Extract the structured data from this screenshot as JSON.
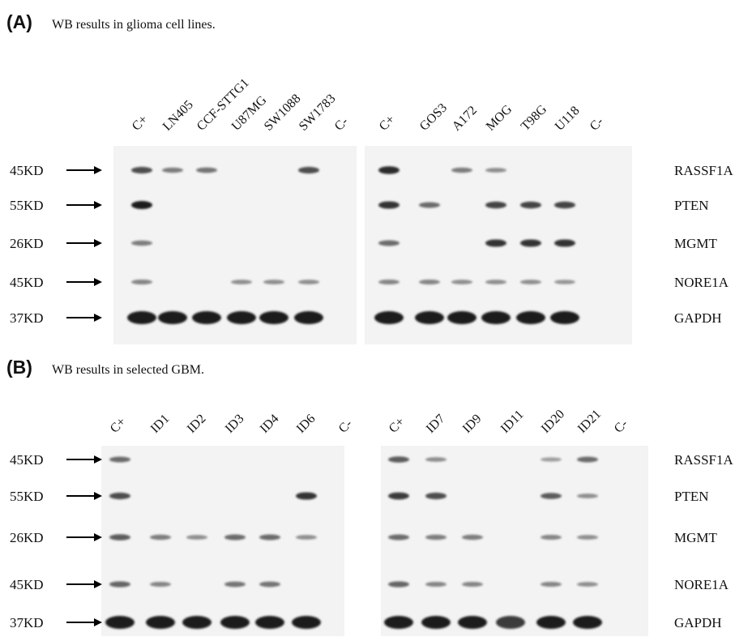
{
  "panels": [
    {
      "label": "(A)",
      "caption": "WB results in glioma cell lines.",
      "lanes": {
        "left": [
          "C+",
          "LN405",
          "CCF-STTG1",
          "U87MG",
          "SW1088",
          "SW1783",
          "C-"
        ],
        "right": [
          "C+",
          "GOS3",
          "A172",
          "MOG",
          "T98G",
          "U118",
          "C-"
        ]
      },
      "rows": [
        {
          "marker": "45KD",
          "protein": "RASSF1A"
        },
        {
          "marker": "55KD",
          "protein": "PTEN"
        },
        {
          "marker": "26KD",
          "protein": "MGMT"
        },
        {
          "marker": "45KD",
          "protein": "NORE1A"
        },
        {
          "marker": "37KD",
          "protein": "GAPDH"
        }
      ]
    },
    {
      "label": "(B)",
      "caption": "WB results in selected GBM.",
      "lanes": {
        "left": [
          "C+",
          "ID1",
          "ID2",
          "ID3",
          "ID4",
          "ID6",
          "C-"
        ],
        "right": [
          "C+",
          "ID7",
          "ID9",
          "ID11",
          "ID20",
          "ID21",
          "C-"
        ]
      },
      "rows": [
        {
          "marker": "45KD",
          "protein": "RASSF1A"
        },
        {
          "marker": "55KD",
          "protein": "PTEN"
        },
        {
          "marker": "26KD",
          "protein": "MGMT"
        },
        {
          "marker": "45KD",
          "protein": "NORE1A"
        },
        {
          "marker": "37KD",
          "protein": "GAPDH"
        }
      ]
    }
  ]
}
